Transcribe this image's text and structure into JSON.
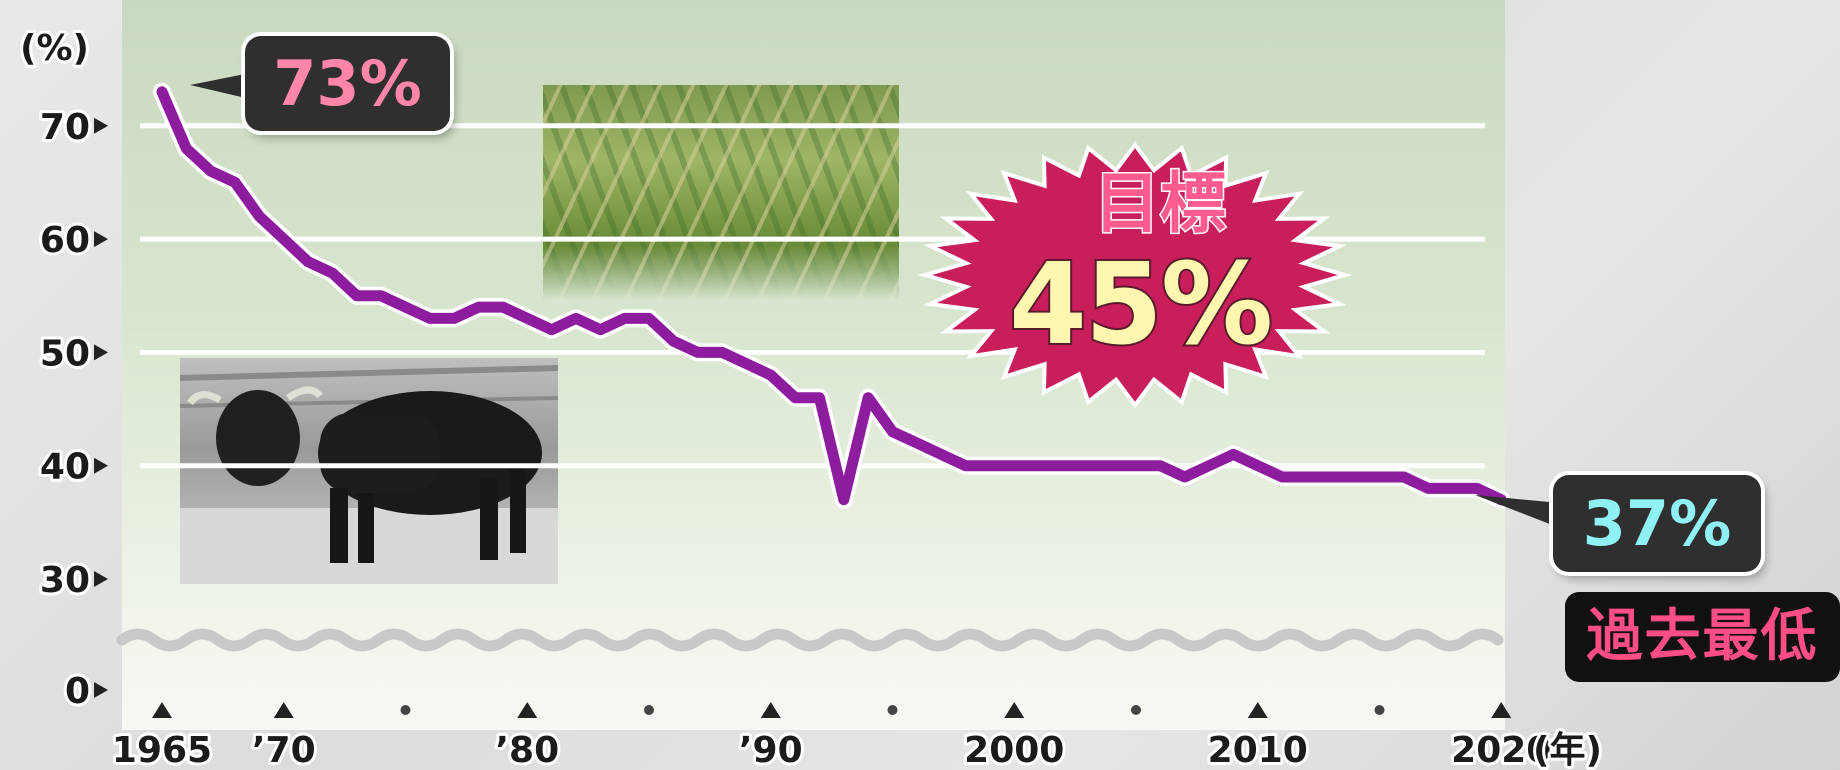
{
  "chart_data": {
    "type": "line",
    "ylabel": "(%)",
    "xunit": "(年)",
    "ylim": [
      0,
      73
    ],
    "yaxis_broken_between": [
      0,
      30
    ],
    "yticks": [
      "0",
      "30",
      "40",
      "50",
      "60",
      "70"
    ],
    "xticks": [
      {
        "year": 1965,
        "label": "1965"
      },
      {
        "year": 1970,
        "label": "’70"
      },
      {
        "year": 1980,
        "label": "’80"
      },
      {
        "year": 1990,
        "label": "’90"
      },
      {
        "year": 2000,
        "label": "2000"
      },
      {
        "year": 2010,
        "label": "2010"
      },
      {
        "year": 2020,
        "label": "2020"
      }
    ],
    "grid": true,
    "series": [
      {
        "color": "#8e1c9e",
        "x": [
          1965,
          1966,
          1967,
          1968,
          1969,
          1970,
          1971,
          1972,
          1973,
          1974,
          1975,
          1976,
          1977,
          1978,
          1979,
          1980,
          1981,
          1982,
          1983,
          1984,
          1985,
          1986,
          1987,
          1988,
          1989,
          1990,
          1991,
          1992,
          1993,
          1994,
          1995,
          1996,
          1997,
          1998,
          1999,
          2000,
          2001,
          2002,
          2003,
          2004,
          2005,
          2006,
          2007,
          2008,
          2009,
          2010,
          2011,
          2012,
          2013,
          2014,
          2015,
          2016,
          2017,
          2018,
          2019,
          2020
        ],
        "y": [
          73,
          68,
          66,
          65,
          62,
          60,
          58,
          57,
          55,
          55,
          54,
          53,
          53,
          54,
          54,
          53,
          52,
          53,
          52,
          53,
          53,
          51,
          50,
          50,
          49,
          48,
          46,
          46,
          37,
          46,
          43,
          42,
          41,
          40,
          40,
          40,
          40,
          40,
          40,
          40,
          40,
          40,
          39,
          40,
          41,
          40,
          39,
          39,
          39,
          39,
          39,
          39,
          38,
          38,
          38,
          37
        ]
      }
    ],
    "annotations": {
      "start": "73%",
      "end": "37%",
      "end_note": "過去最低",
      "target_label": "目標",
      "target_value": "45%"
    }
  }
}
